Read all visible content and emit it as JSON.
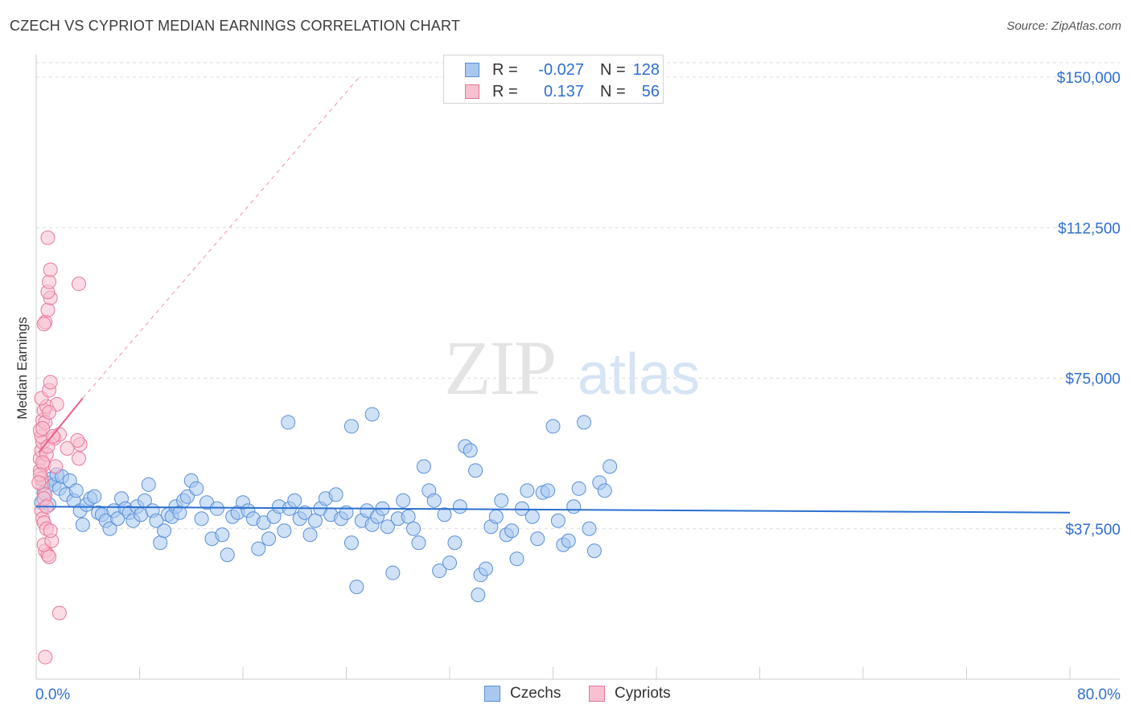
{
  "header": {
    "title": "CZECH VS CYPRIOT MEDIAN EARNINGS CORRELATION CHART",
    "source": "Source: ZipAtlas.com"
  },
  "watermark": {
    "zip": "ZIP",
    "atlas": "atlas"
  },
  "legend": {
    "rows": [
      {
        "r_label": "R =",
        "r_value": "-0.027",
        "n_label": "N =",
        "n_value": "128",
        "color": "#a8c8f0",
        "border": "#5b8fd6"
      },
      {
        "r_label": "R =",
        "r_value": "0.137",
        "n_label": "N =",
        "n_value": "56",
        "color": "#f8c0d0",
        "border": "#e07898"
      }
    ]
  },
  "bottom_legend": {
    "czechs": "Czechs",
    "cypriots": "Cypriots"
  },
  "chart_data": {
    "type": "scatter",
    "title": "CZECH VS CYPRIOT MEDIAN EARNINGS CORRELATION CHART",
    "xlabel": "",
    "ylabel": "Median Earnings",
    "xlim": [
      0,
      80
    ],
    "ylim": [
      0,
      154000
    ],
    "x_tick_labels": [
      "0.0%",
      "80.0%"
    ],
    "y_ticks": [
      37500,
      75000,
      112500,
      150000
    ],
    "y_tick_labels": [
      "$37,500",
      "$75,000",
      "$112,500",
      "$150,000"
    ],
    "grid": true,
    "legend_position": "top-center",
    "colors": {
      "czechs": "#5b8fd6",
      "czechs_fill": "#a8c8f0",
      "cypriots": "#e8789a",
      "cypriots_fill": "#f8c0d0",
      "czech_trend": "#2b6fd0",
      "cypriot_trend": "#e8608a"
    },
    "series": [
      {
        "name": "Czechs",
        "r": -0.027,
        "n": 128,
        "trend": {
          "x": [
            0,
            80
          ],
          "y": [
            43000,
            41500
          ]
        },
        "points": [
          [
            0.4,
            44000
          ],
          [
            0.6,
            46500
          ],
          [
            0.8,
            49000
          ],
          [
            1.0,
            43500
          ],
          [
            1.2,
            50000
          ],
          [
            1.4,
            48500
          ],
          [
            1.6,
            51000
          ],
          [
            1.8,
            47500
          ],
          [
            2.0,
            50500
          ],
          [
            2.3,
            46000
          ],
          [
            2.6,
            49500
          ],
          [
            2.9,
            44500
          ],
          [
            3.1,
            47000
          ],
          [
            3.4,
            42000
          ],
          [
            3.6,
            38500
          ],
          [
            3.9,
            43500
          ],
          [
            4.2,
            45000
          ],
          [
            4.5,
            45500
          ],
          [
            4.8,
            41500
          ],
          [
            5.1,
            41000
          ],
          [
            5.4,
            39500
          ],
          [
            5.7,
            37500
          ],
          [
            6.0,
            42000
          ],
          [
            6.3,
            40000
          ],
          [
            6.6,
            45000
          ],
          [
            6.9,
            42500
          ],
          [
            7.2,
            41500
          ],
          [
            7.5,
            39500
          ],
          [
            7.8,
            43000
          ],
          [
            8.1,
            41000
          ],
          [
            8.4,
            44500
          ],
          [
            8.7,
            48500
          ],
          [
            9.0,
            42000
          ],
          [
            9.3,
            39500
          ],
          [
            9.6,
            34000
          ],
          [
            9.9,
            37000
          ],
          [
            10.2,
            41000
          ],
          [
            10.5,
            40500
          ],
          [
            10.8,
            43000
          ],
          [
            11.1,
            41500
          ],
          [
            11.4,
            44500
          ],
          [
            11.7,
            45500
          ],
          [
            12.0,
            49500
          ],
          [
            12.4,
            47500
          ],
          [
            12.8,
            40000
          ],
          [
            13.2,
            44000
          ],
          [
            13.6,
            35000
          ],
          [
            14.0,
            42500
          ],
          [
            14.4,
            36000
          ],
          [
            14.8,
            31000
          ],
          [
            15.2,
            40500
          ],
          [
            15.6,
            41500
          ],
          [
            16.0,
            44000
          ],
          [
            16.4,
            42000
          ],
          [
            16.8,
            40000
          ],
          [
            17.2,
            32500
          ],
          [
            17.6,
            39000
          ],
          [
            18.0,
            35000
          ],
          [
            18.4,
            40500
          ],
          [
            18.8,
            43000
          ],
          [
            19.2,
            37000
          ],
          [
            19.6,
            42500
          ],
          [
            20.0,
            44500
          ],
          [
            20.4,
            40000
          ],
          [
            20.8,
            41500
          ],
          [
            21.2,
            36000
          ],
          [
            21.6,
            39500
          ],
          [
            22.0,
            42500
          ],
          [
            22.4,
            45000
          ],
          [
            22.8,
            41000
          ],
          [
            23.2,
            46000
          ],
          [
            23.6,
            40000
          ],
          [
            24.0,
            41500
          ],
          [
            24.4,
            34000
          ],
          [
            24.8,
            23000
          ],
          [
            25.2,
            39500
          ],
          [
            25.6,
            42000
          ],
          [
            26.0,
            38500
          ],
          [
            26.4,
            40500
          ],
          [
            26.8,
            42500
          ],
          [
            27.2,
            38000
          ],
          [
            27.6,
            26500
          ],
          [
            28.0,
            40000
          ],
          [
            28.4,
            44500
          ],
          [
            28.8,
            40500
          ],
          [
            29.2,
            37500
          ],
          [
            29.6,
            34000
          ],
          [
            30.0,
            53000
          ],
          [
            30.4,
            47000
          ],
          [
            30.8,
            44500
          ],
          [
            31.2,
            27000
          ],
          [
            31.6,
            41000
          ],
          [
            32.0,
            29000
          ],
          [
            32.4,
            34000
          ],
          [
            32.8,
            43000
          ],
          [
            33.2,
            58000
          ],
          [
            33.6,
            57000
          ],
          [
            34.0,
            52000
          ],
          [
            34.4,
            26000
          ],
          [
            34.8,
            27500
          ],
          [
            35.2,
            38000
          ],
          [
            35.6,
            40500
          ],
          [
            36.0,
            44500
          ],
          [
            36.4,
            36000
          ],
          [
            36.8,
            37000
          ],
          [
            37.2,
            30000
          ],
          [
            37.6,
            42500
          ],
          [
            38.0,
            47000
          ],
          [
            38.4,
            40500
          ],
          [
            38.8,
            35000
          ],
          [
            39.2,
            46500
          ],
          [
            39.6,
            47000
          ],
          [
            40.0,
            63000
          ],
          [
            40.4,
            39500
          ],
          [
            40.8,
            33500
          ],
          [
            41.2,
            34500
          ],
          [
            41.6,
            43000
          ],
          [
            42.0,
            47500
          ],
          [
            42.4,
            64000
          ],
          [
            42.8,
            37500
          ],
          [
            43.2,
            32000
          ],
          [
            43.6,
            49000
          ],
          [
            44.0,
            47000
          ],
          [
            44.4,
            53000
          ],
          [
            19.5,
            64000
          ],
          [
            24.4,
            63000
          ],
          [
            26.0,
            66000
          ],
          [
            34.2,
            21000
          ]
        ]
      },
      {
        "name": "Cypriots",
        "r": 0.137,
        "n": 56,
        "trend_solid": {
          "x": [
            0.2,
            3.6
          ],
          "y": [
            56500,
            70000
          ]
        },
        "trend_dashed": {
          "x": [
            3.6,
            25.0
          ],
          "y": [
            70000,
            150000
          ]
        },
        "points": [
          [
            0.3,
            55000
          ],
          [
            0.4,
            57000
          ],
          [
            0.5,
            59000
          ],
          [
            0.3,
            52000
          ],
          [
            0.6,
            53500
          ],
          [
            0.8,
            56000
          ],
          [
            0.4,
            60500
          ],
          [
            0.5,
            48500
          ],
          [
            0.7,
            46000
          ],
          [
            0.4,
            42000
          ],
          [
            0.5,
            40000
          ],
          [
            0.6,
            39000
          ],
          [
            0.8,
            37500
          ],
          [
            0.7,
            32000
          ],
          [
            0.9,
            31000
          ],
          [
            0.6,
            33500
          ],
          [
            1.0,
            30500
          ],
          [
            1.2,
            34500
          ],
          [
            1.1,
            37000
          ],
          [
            0.3,
            62000
          ],
          [
            0.5,
            64500
          ],
          [
            0.6,
            67000
          ],
          [
            0.8,
            68000
          ],
          [
            0.4,
            70000
          ],
          [
            1.0,
            72000
          ],
          [
            1.1,
            74000
          ],
          [
            1.6,
            68500
          ],
          [
            1.4,
            60000
          ],
          [
            1.8,
            61000
          ],
          [
            2.4,
            57500
          ],
          [
            3.3,
            55000
          ],
          [
            3.4,
            58500
          ],
          [
            3.2,
            59500
          ],
          [
            0.7,
            89000
          ],
          [
            0.9,
            92000
          ],
          [
            1.1,
            95000
          ],
          [
            0.6,
            88500
          ],
          [
            0.9,
            96500
          ],
          [
            1.0,
            99000
          ],
          [
            1.1,
            102000
          ],
          [
            0.9,
            110000
          ],
          [
            3.3,
            98500
          ],
          [
            1.8,
            16500
          ],
          [
            0.7,
            5500
          ],
          [
            0.4,
            50000
          ],
          [
            0.5,
            54000
          ],
          [
            0.9,
            58000
          ],
          [
            1.3,
            60500
          ],
          [
            0.6,
            45000
          ],
          [
            0.8,
            43000
          ],
          [
            0.3,
            51000
          ],
          [
            0.2,
            49000
          ],
          [
            1.5,
            53000
          ],
          [
            0.7,
            64000
          ],
          [
            1.0,
            66500
          ],
          [
            0.5,
            62500
          ]
        ]
      }
    ]
  }
}
